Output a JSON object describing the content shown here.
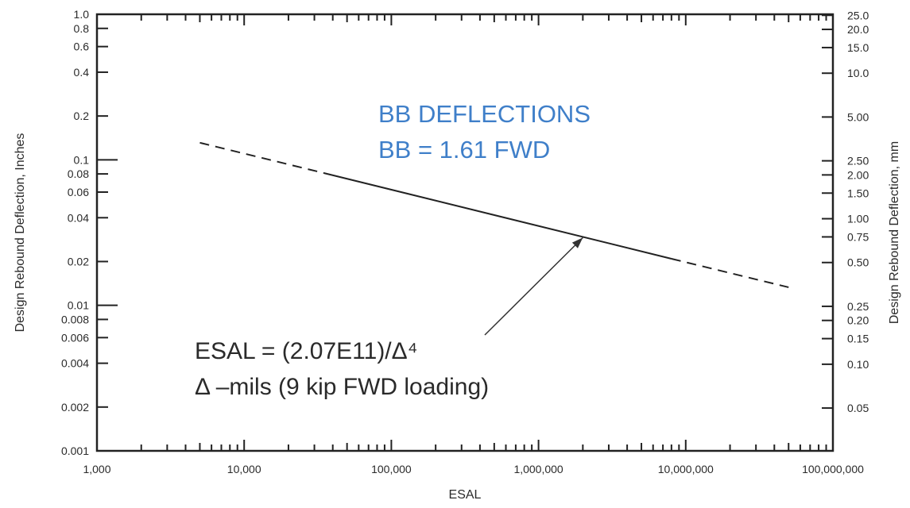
{
  "chart_data": {
    "type": "line",
    "title": "",
    "xlabel": "ESAL",
    "ylabel_left": "Design Rebound Deflection, Inches",
    "ylabel_right": "Design Rebound Deflection, mm",
    "x_scale": "log",
    "y_scale": "log",
    "xlim": [
      1000,
      100000000
    ],
    "ylim": [
      0.001,
      1.0
    ],
    "x_ticks": [
      {
        "value": 1000,
        "label": "1,000"
      },
      {
        "value": 10000,
        "label": "10,000"
      },
      {
        "value": 100000,
        "label": "100,000"
      },
      {
        "value": 1000000,
        "label": "1,000,000"
      },
      {
        "value": 10000000,
        "label": "10,000,000"
      },
      {
        "value": 100000000,
        "label": "100,000,000"
      }
    ],
    "y_ticks_left": [
      {
        "value": 1.0,
        "label": "1.0"
      },
      {
        "value": 0.8,
        "label": "0.8"
      },
      {
        "value": 0.6,
        "label": "0.6"
      },
      {
        "value": 0.4,
        "label": "0.4"
      },
      {
        "value": 0.2,
        "label": "0.2"
      },
      {
        "value": 0.1,
        "label": "0.1"
      },
      {
        "value": 0.08,
        "label": "0.08"
      },
      {
        "value": 0.06,
        "label": "0.06"
      },
      {
        "value": 0.04,
        "label": "0.04"
      },
      {
        "value": 0.02,
        "label": "0.02"
      },
      {
        "value": 0.01,
        "label": "0.01"
      },
      {
        "value": 0.008,
        "label": "0.008"
      },
      {
        "value": 0.006,
        "label": "0.006"
      },
      {
        "value": 0.004,
        "label": "0.004"
      },
      {
        "value": 0.002,
        "label": "0.002"
      },
      {
        "value": 0.001,
        "label": "0.001"
      }
    ],
    "y_ticks_right": [
      {
        "value": 25.0,
        "label": "25.0"
      },
      {
        "value": 20.0,
        "label": "20.0"
      },
      {
        "value": 15.0,
        "label": "15.0"
      },
      {
        "value": 10.0,
        "label": "10.0"
      },
      {
        "value": 5.0,
        "label": "5.00"
      },
      {
        "value": 2.5,
        "label": "2.50"
      },
      {
        "value": 2.0,
        "label": "2.00"
      },
      {
        "value": 1.5,
        "label": "1.50"
      },
      {
        "value": 1.0,
        "label": "1.00"
      },
      {
        "value": 0.75,
        "label": "0.75"
      },
      {
        "value": 0.5,
        "label": "0.50"
      },
      {
        "value": 0.25,
        "label": "0.25"
      },
      {
        "value": 0.2,
        "label": "0.20"
      },
      {
        "value": 0.15,
        "label": "0.15"
      },
      {
        "value": 0.1,
        "label": "0.10"
      },
      {
        "value": 0.05,
        "label": "0.05"
      }
    ],
    "grid": false,
    "series": [
      {
        "style": "solid",
        "x": [
          35000,
          8000000
        ],
        "y": [
          0.081,
          0.0209
        ]
      },
      {
        "style": "dashed",
        "x": [
          5000,
          35000
        ],
        "y": [
          0.131,
          0.081
        ]
      },
      {
        "style": "dashed",
        "x": [
          8000000,
          50000000
        ],
        "y": [
          0.0209,
          0.0133
        ]
      }
    ],
    "annotations": {
      "blue_line1": "BB DEFLECTIONS",
      "blue_line2": "BB = 1.61 FWD",
      "eq_line1": "ESAL = (2.07E11)/Δ⁴",
      "eq_line2": "Δ –mils (9 kip FWD loading)",
      "arrow_target": {
        "x": 2000000,
        "y": 0.0292
      }
    },
    "colors": {
      "blue_text": "#3f7fc9",
      "ink": "#2a2a2a"
    }
  }
}
